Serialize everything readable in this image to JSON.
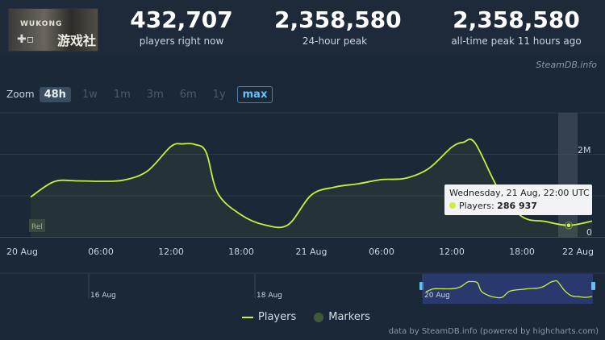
{
  "header": {
    "game_title": "WUKONG",
    "game_glyphs": "游戏社",
    "stats": [
      {
        "value": "432,707",
        "label": "players right now"
      },
      {
        "value": "2,358,580",
        "label": "24-hour peak"
      },
      {
        "value": "2,358,580",
        "label": "all-time peak 11 hours ago"
      }
    ],
    "brand": "SteamDB.info"
  },
  "zoom": {
    "label": "Zoom",
    "options": [
      "48h",
      "1w",
      "1m",
      "3m",
      "6m",
      "1y",
      "max"
    ]
  },
  "tooltip": {
    "date": "Wednesday, 21 Aug, 22:00 UTC",
    "series": "Players:",
    "value": "286 937"
  },
  "legend": {
    "players": "Players",
    "markers": "Markers"
  },
  "credit": "data by SteamDB.info (powered by highcharts.com)",
  "colors": {
    "line": "#c8f03c",
    "background": "#1b2838",
    "marker": "#3f5a3a"
  },
  "chart_data": {
    "type": "line",
    "series": [
      {
        "name": "Players",
        "x": [
          "20 Aug 00:00",
          "20 Aug 02:00",
          "20 Aug 04:00",
          "20 Aug 06:00",
          "20 Aug 08:00",
          "20 Aug 10:00",
          "20 Aug 12:00",
          "20 Aug 13:00",
          "20 Aug 14:00",
          "20 Aug 15:00",
          "20 Aug 16:00",
          "20 Aug 18:00",
          "20 Aug 20:00",
          "20 Aug 22:00",
          "21 Aug 00:00",
          "21 Aug 02:00",
          "21 Aug 04:00",
          "21 Aug 06:00",
          "21 Aug 08:00",
          "21 Aug 10:00",
          "21 Aug 12:00",
          "21 Aug 13:00",
          "21 Aug 14:00",
          "21 Aug 16:00",
          "21 Aug 18:00",
          "21 Aug 20:00",
          "21 Aug 22:00",
          "22 Aug 00:00"
        ],
        "values": [
          970000,
          1340000,
          1360000,
          1350000,
          1380000,
          1600000,
          2190000,
          2250000,
          2240000,
          2050000,
          1060000,
          540000,
          300000,
          300000,
          1020000,
          1210000,
          1290000,
          1390000,
          1420000,
          1650000,
          2170000,
          2290000,
          2270000,
          1160000,
          500000,
          380000,
          286937,
          390000
        ]
      }
    ],
    "x_ticks": [
      "20 Aug",
      "06:00",
      "12:00",
      "18:00",
      "21 Aug",
      "06:00",
      "12:00",
      "18:00",
      "22 Aug"
    ],
    "y_ticks": [
      "0",
      "2M"
    ],
    "ylim": [
      0,
      3000000
    ],
    "navigator": {
      "labels": [
        "16 Aug",
        "18 Aug",
        "20 Aug"
      ]
    },
    "annotations": [
      "Rel"
    ],
    "grid": true,
    "legend_position": "bottom-center"
  }
}
